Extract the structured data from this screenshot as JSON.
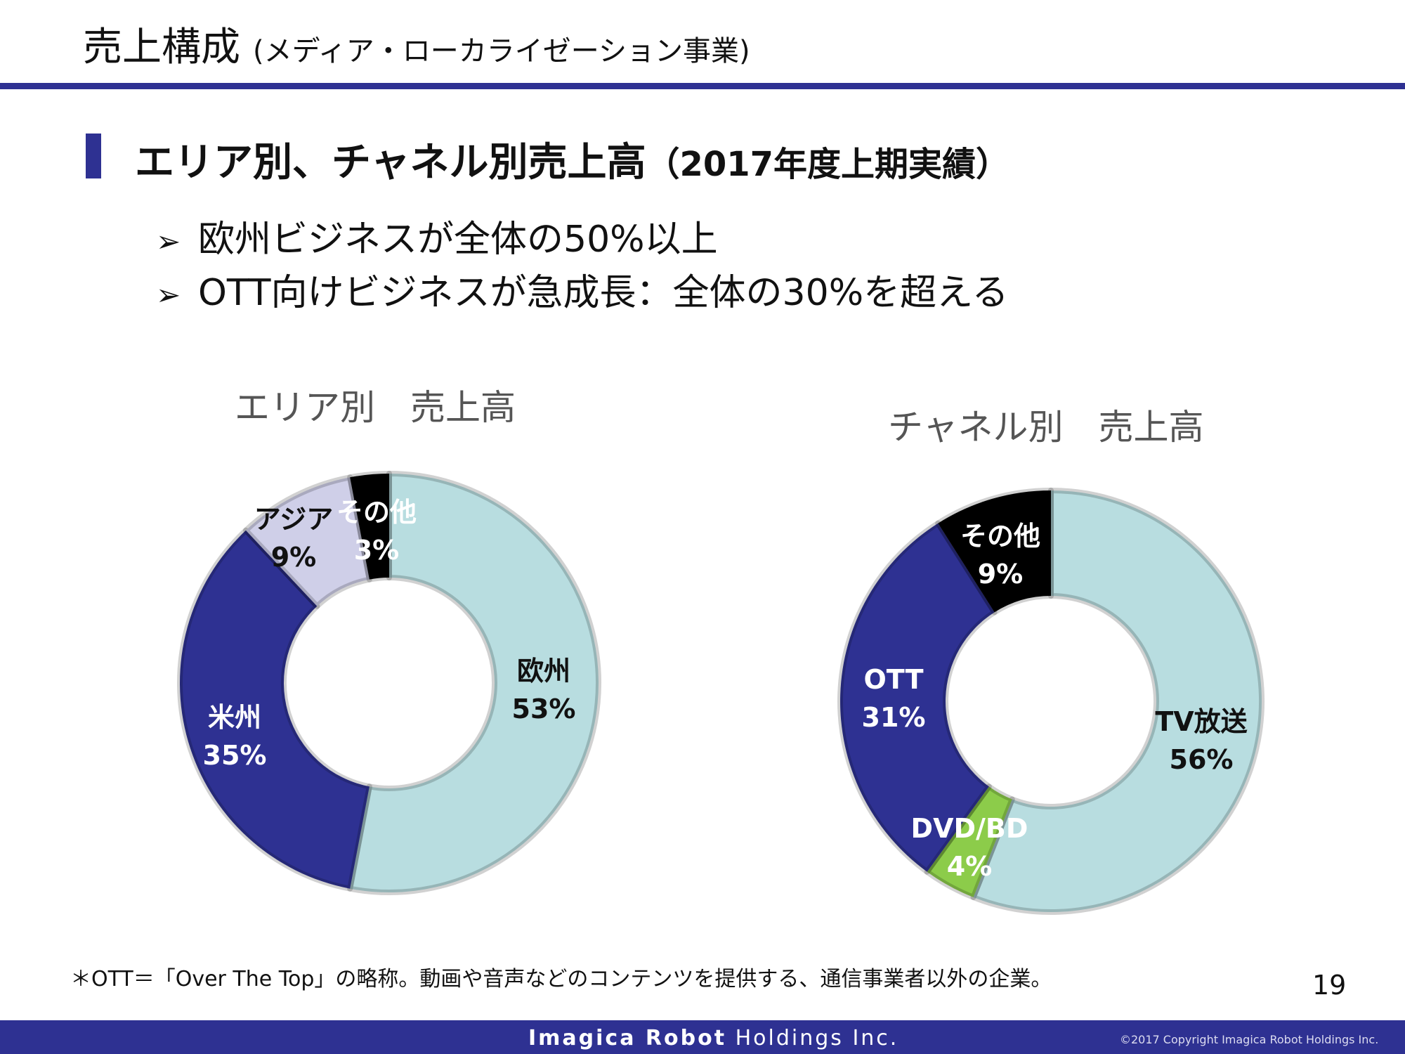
{
  "slide": {
    "title": "売上構成",
    "subtitle": "(メディア・ローカライゼーション事業)",
    "heading": "エリア別、チャネル別売上高",
    "heading_paren": "（2017年度上期実績）",
    "bullets": [
      "欧州ビジネスが全体の50%以上",
      "OTT向けビジネスが急成長：全体の30%を超える"
    ],
    "bullet_marker": "➢",
    "footnote": "＊OTT＝「Over The Top」の略称。動画や音声などのコンテンツを提供する、通信事業者以外の企業。",
    "page_number": "19",
    "footer_company_bold": "Imagica Robot",
    "footer_company_rest": "Holdings Inc.",
    "footer_copyright": "©2017  Copyright Imagica Robot Holdings Inc."
  },
  "colors": {
    "accent": "#2e3192",
    "light_blue": "#b8dde0",
    "navy": "#2e3192",
    "lavender": "#cfcfe8",
    "black": "#000000",
    "green": "#8ccc4a"
  },
  "chart_data": [
    {
      "type": "pie",
      "variant": "donut",
      "title": "エリア別　売上高",
      "slices": [
        {
          "label": "欧州",
          "value": 53,
          "value_label": "53%",
          "color": "#b8dde0",
          "text_color": "#111111"
        },
        {
          "label": "米州",
          "value": 35,
          "value_label": "35%",
          "color": "#2e3192",
          "text_color": "#ffffff"
        },
        {
          "label": "アジア",
          "value": 9,
          "value_label": "9%",
          "color": "#cfcfe8",
          "text_color": "#111111"
        },
        {
          "label": "その他",
          "value": 3,
          "value_label": "3%",
          "color": "#000000",
          "text_color": "#ffffff"
        }
      ],
      "legend": "none"
    },
    {
      "type": "pie",
      "variant": "donut",
      "title": "チャネル別　売上高",
      "slices": [
        {
          "label": "TV放送",
          "value": 56,
          "value_label": "56%",
          "color": "#b8dde0",
          "text_color": "#111111"
        },
        {
          "label": "DVD/BD",
          "value": 4,
          "value_label": "4%",
          "color": "#8ccc4a",
          "text_color": "#ffffff"
        },
        {
          "label": "OTT",
          "value": 31,
          "value_label": "31%",
          "color": "#2e3192",
          "text_color": "#ffffff"
        },
        {
          "label": "その他",
          "value": 9,
          "value_label": "9%",
          "color": "#000000",
          "text_color": "#ffffff"
        }
      ],
      "legend": "none"
    }
  ]
}
